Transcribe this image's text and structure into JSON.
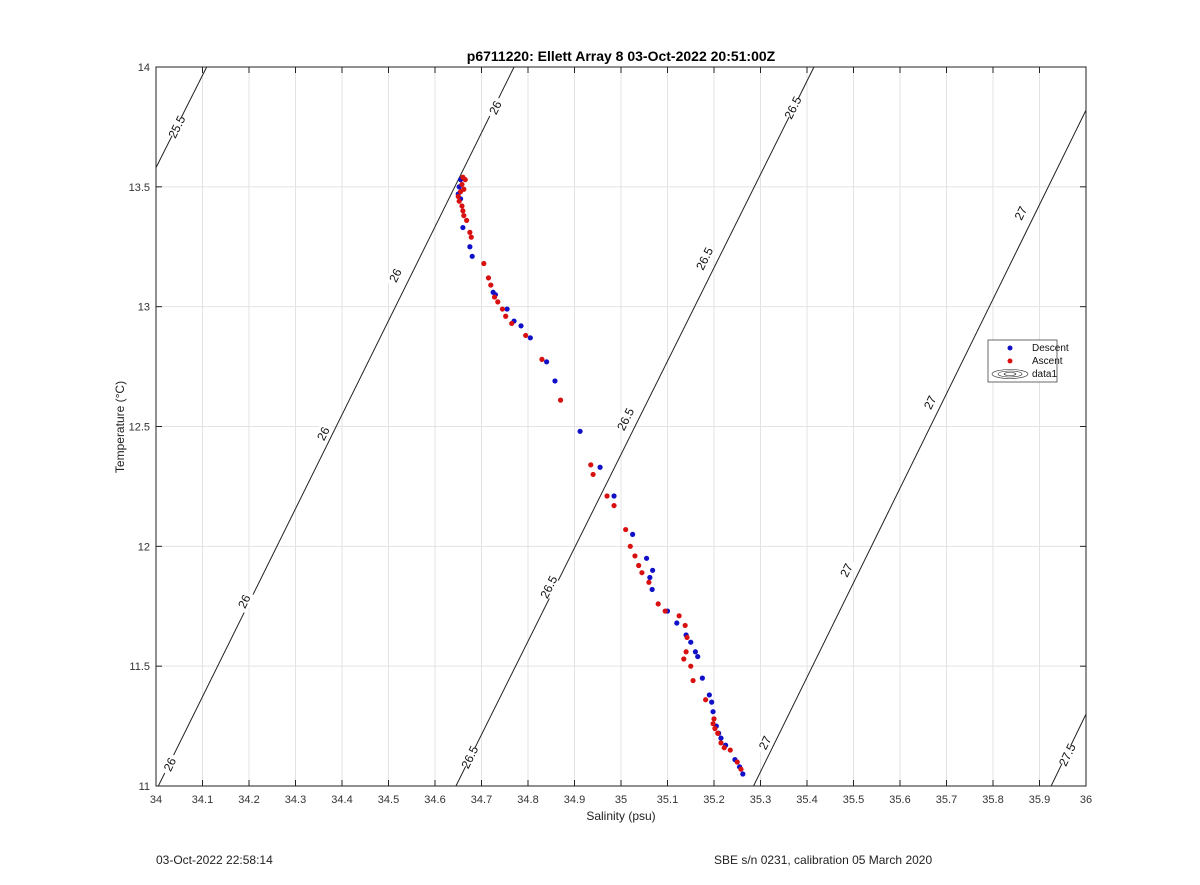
{
  "chart_data": {
    "type": "scatter",
    "title": "p6711220: Ellett Array 8 03-Oct-2022 20:51:00Z",
    "xlabel": "Salinity (psu)",
    "ylabel": "Temperature (°C)",
    "xlim": [
      34,
      36
    ],
    "ylim": [
      11,
      14
    ],
    "xticks": [
      "34",
      "34.1",
      "34.2",
      "34.3",
      "34.4",
      "34.5",
      "34.6",
      "34.7",
      "34.8",
      "34.9",
      "35",
      "35.1",
      "35.2",
      "35.3",
      "35.4",
      "35.5",
      "35.6",
      "35.7",
      "35.8",
      "35.9",
      "36"
    ],
    "yticks": [
      "11",
      "11.5",
      "12",
      "12.5",
      "13",
      "13.5",
      "14"
    ],
    "grid": true,
    "legend_position": "right",
    "legend": [
      "Descent",
      "Ascent",
      "data1"
    ],
    "series": [
      {
        "name": "Descent",
        "color": "#1010c8",
        "points": [
          [
            34.655,
            13.53
          ],
          [
            34.652,
            13.5
          ],
          [
            34.65,
            13.47
          ],
          [
            34.655,
            13.45
          ],
          [
            34.66,
            13.33
          ],
          [
            34.675,
            13.25
          ],
          [
            34.68,
            13.21
          ],
          [
            34.725,
            13.06
          ],
          [
            34.73,
            13.05
          ],
          [
            34.755,
            12.99
          ],
          [
            34.77,
            12.94
          ],
          [
            34.785,
            12.92
          ],
          [
            34.805,
            12.87
          ],
          [
            34.84,
            12.77
          ],
          [
            34.858,
            12.69
          ],
          [
            34.912,
            12.48
          ],
          [
            34.955,
            12.33
          ],
          [
            34.985,
            12.21
          ],
          [
            35.025,
            12.05
          ],
          [
            35.055,
            11.95
          ],
          [
            35.068,
            11.9
          ],
          [
            35.062,
            11.87
          ],
          [
            35.067,
            11.82
          ],
          [
            35.1,
            11.73
          ],
          [
            35.12,
            11.68
          ],
          [
            35.14,
            11.63
          ],
          [
            35.15,
            11.6
          ],
          [
            35.16,
            11.56
          ],
          [
            35.165,
            11.54
          ],
          [
            35.175,
            11.45
          ],
          [
            35.19,
            11.38
          ],
          [
            35.195,
            11.35
          ],
          [
            35.198,
            11.31
          ],
          [
            35.205,
            11.25
          ],
          [
            35.21,
            11.22
          ],
          [
            35.215,
            11.2
          ],
          [
            35.225,
            11.17
          ],
          [
            35.245,
            11.11
          ],
          [
            35.255,
            11.08
          ],
          [
            35.262,
            11.05
          ]
        ]
      },
      {
        "name": "Ascent",
        "color": "#d81010",
        "points": [
          [
            34.66,
            13.54
          ],
          [
            34.665,
            13.53
          ],
          [
            34.658,
            13.51
          ],
          [
            34.662,
            13.49
          ],
          [
            34.655,
            13.48
          ],
          [
            34.65,
            13.46
          ],
          [
            34.652,
            13.44
          ],
          [
            34.658,
            13.42
          ],
          [
            34.66,
            13.4
          ],
          [
            34.662,
            13.38
          ],
          [
            34.668,
            13.36
          ],
          [
            34.675,
            13.31
          ],
          [
            34.678,
            13.29
          ],
          [
            34.705,
            13.18
          ],
          [
            34.715,
            13.12
          ],
          [
            34.72,
            13.09
          ],
          [
            34.728,
            13.04
          ],
          [
            34.735,
            13.02
          ],
          [
            34.745,
            12.99
          ],
          [
            34.752,
            12.96
          ],
          [
            34.765,
            12.93
          ],
          [
            34.795,
            12.88
          ],
          [
            34.83,
            12.78
          ],
          [
            34.87,
            12.61
          ],
          [
            34.935,
            12.34
          ],
          [
            34.94,
            12.3
          ],
          [
            34.97,
            12.21
          ],
          [
            34.985,
            12.17
          ],
          [
            35.01,
            12.07
          ],
          [
            35.02,
            12.0
          ],
          [
            35.03,
            11.96
          ],
          [
            35.038,
            11.92
          ],
          [
            35.045,
            11.89
          ],
          [
            35.06,
            11.85
          ],
          [
            35.08,
            11.76
          ],
          [
            35.095,
            11.73
          ],
          [
            35.125,
            11.71
          ],
          [
            35.138,
            11.67
          ],
          [
            35.142,
            11.62
          ],
          [
            35.14,
            11.56
          ],
          [
            35.135,
            11.53
          ],
          [
            35.15,
            11.5
          ],
          [
            35.155,
            11.44
          ],
          [
            35.182,
            11.36
          ],
          [
            35.2,
            11.28
          ],
          [
            35.198,
            11.26
          ],
          [
            35.202,
            11.24
          ],
          [
            35.208,
            11.22
          ],
          [
            35.215,
            11.18
          ],
          [
            35.222,
            11.16
          ],
          [
            35.235,
            11.15
          ],
          [
            35.25,
            11.1
          ],
          [
            35.258,
            11.07
          ]
        ]
      }
    ],
    "contours": [
      {
        "label": "25.5",
        "x": [
          34.0,
          34.109
        ],
        "y": [
          13.58,
          14.0
        ],
        "label_at": [
          [
            34.045,
            13.75
          ]
        ]
      },
      {
        "label": "26",
        "x": [
          34.005,
          34.77
        ],
        "y": [
          11.0,
          14.0
        ],
        "label_at": [
          [
            34.03,
            11.09
          ],
          [
            34.19,
            11.77
          ],
          [
            34.36,
            12.47
          ],
          [
            34.515,
            13.13
          ],
          [
            34.73,
            13.83
          ]
        ]
      },
      {
        "label": "26.5",
        "x": [
          34.645,
          35.415
        ],
        "y": [
          11.0,
          14.0
        ],
        "label_at": [
          [
            34.675,
            11.12
          ],
          [
            34.845,
            11.83
          ],
          [
            35.01,
            12.53
          ],
          [
            35.18,
            13.2
          ],
          [
            35.37,
            13.83
          ]
        ]
      },
      {
        "label": "27",
        "x": [
          35.285,
          36.0
        ],
        "y": [
          11.0,
          13.82
        ],
        "label_at": [
          [
            35.31,
            11.18
          ],
          [
            35.485,
            11.9
          ],
          [
            35.665,
            12.6
          ],
          [
            35.86,
            13.39
          ]
        ]
      },
      {
        "label": "27.5",
        "x": [
          35.925,
          36.0
        ],
        "y": [
          11.0,
          11.3
        ],
        "label_at": [
          [
            35.96,
            11.13
          ]
        ]
      }
    ]
  },
  "footer": {
    "timestamp": "03-Oct-2022 22:58:14",
    "calibration": "SBE s/n 0231, calibration 05 March 2020"
  }
}
